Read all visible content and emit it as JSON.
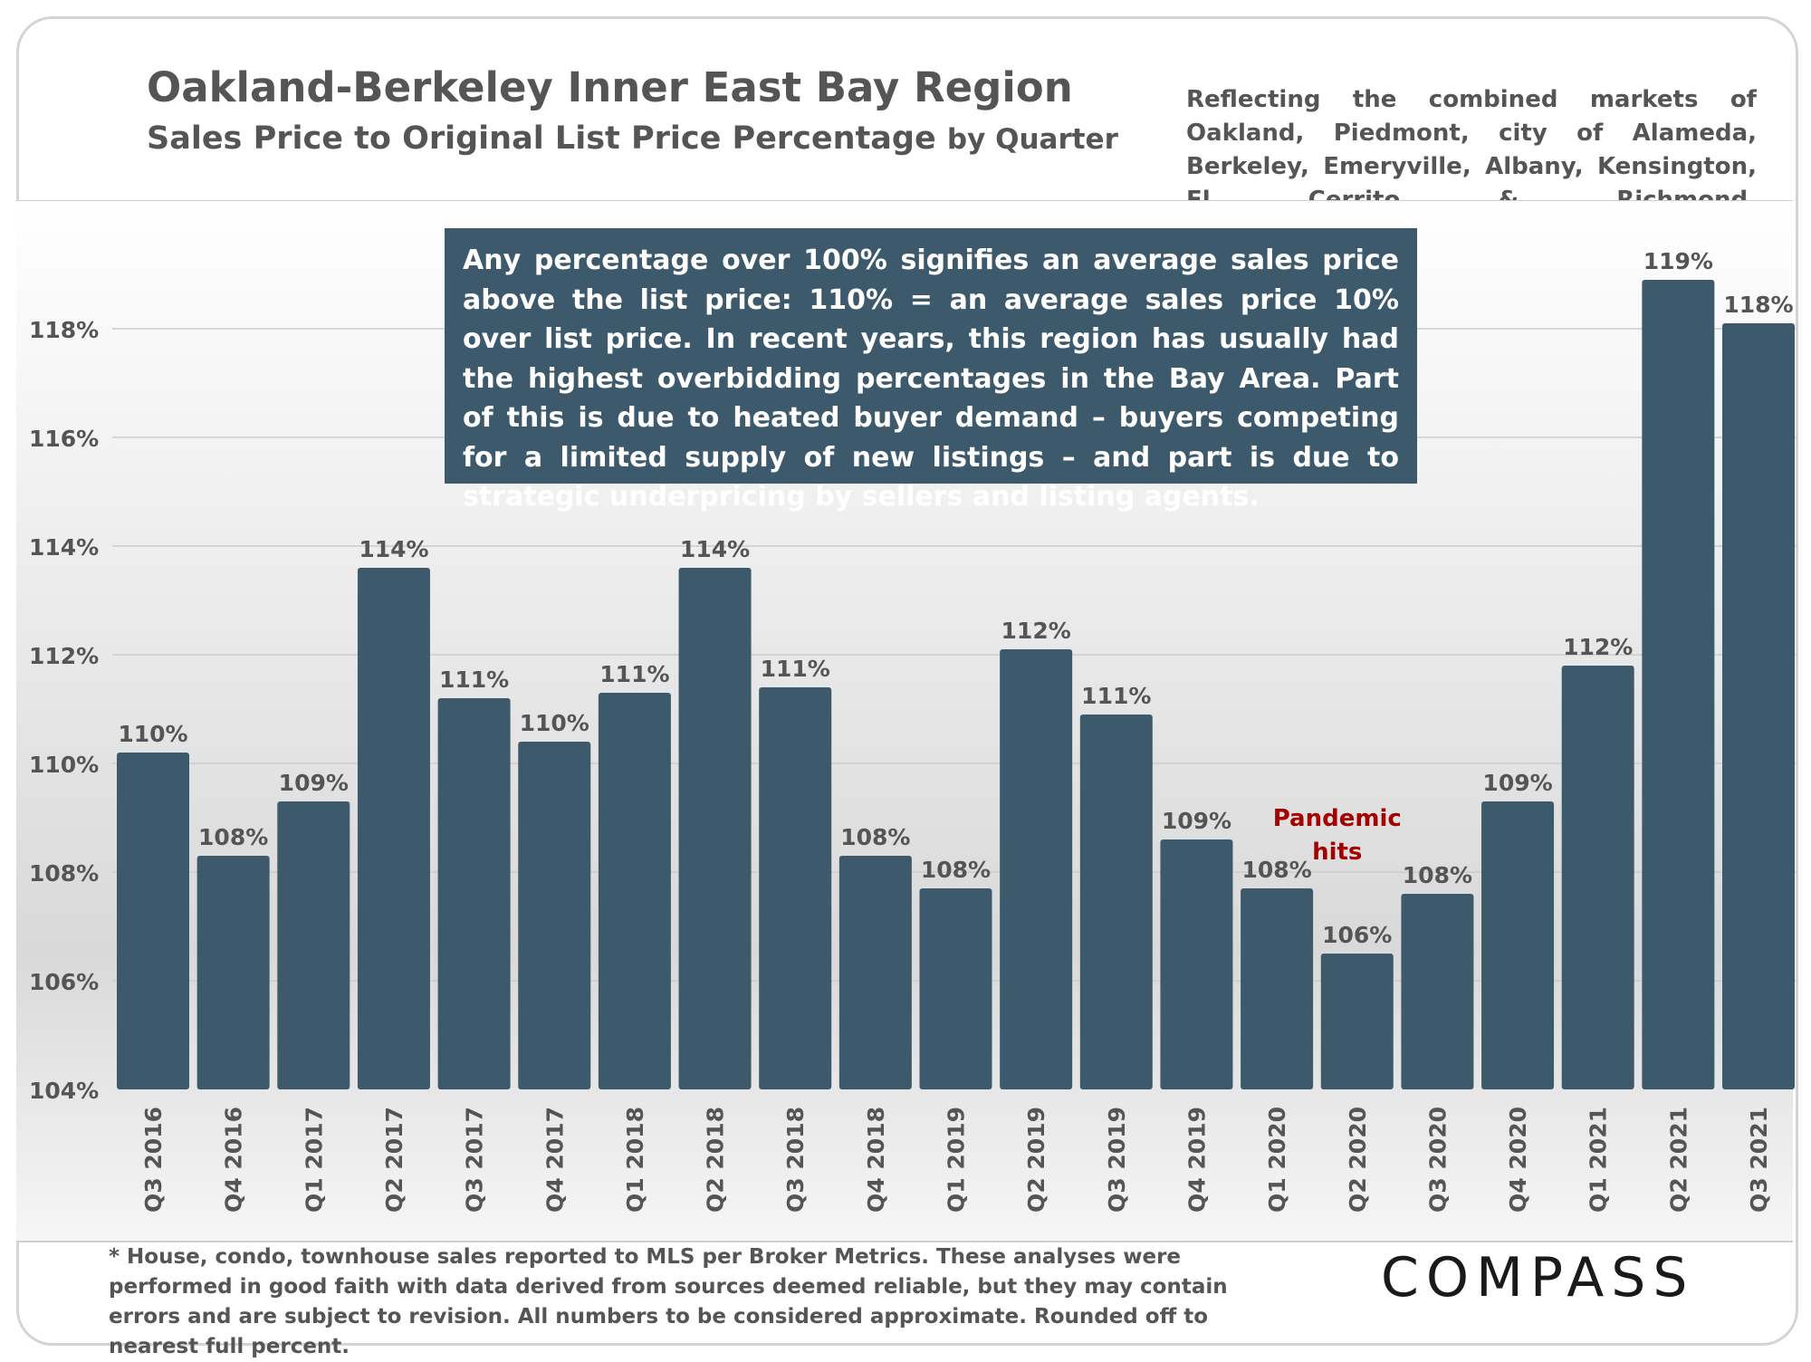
{
  "header": {
    "title": "Oakland-Berkeley Inner East Bay Region",
    "subtitle_main": "Sales Price to Original List Price Percentage",
    "subtitle_suffix": "by Quarter",
    "region_note": "Reflecting the combined markets of Oakland, Piedmont, city of Alameda, Berkeley, Emeryville, Albany, Kensington, El Cerrito & Richmond."
  },
  "callout": {
    "text": "Any percentage over 100% signifies an average sales price above the list price: 110% = an average sales price 10% over list price. In recent years, this region has usually had the highest overbidding percentages in the Bay Area. Part of this is due to heated buyer demand – buyers competing for a limited supply of new listings – and part is due to strategic underpricing by sellers and listing agents."
  },
  "annotation": {
    "line1": "Pandemic",
    "line2": "hits",
    "color": "#a30000"
  },
  "footer": {
    "note": "* House, condo, townhouse sales reported to MLS per Broker Metrics. These analyses were performed in good faith with data derived from sources deemed reliable, but they may contain errors and are subject to revision. All numbers to  be considered  approximate. Rounded off to nearest full percent.",
    "logo": "COMPASS"
  },
  "colors": {
    "bar": "#3d5a6c",
    "text": "#555555",
    "grid": "#cccccc"
  },
  "chart_data": {
    "type": "bar",
    "categories": [
      "Q3 2016",
      "Q4 2016",
      "Q1 2017",
      "Q2 2017",
      "Q3 2017",
      "Q4 2017",
      "Q1 2018",
      "Q2 2018",
      "Q3 2018",
      "Q4 2018",
      "Q1 2019",
      "Q2 2019",
      "Q3 2019",
      "Q4 2019",
      "Q1 2020",
      "Q2 2020",
      "Q3 2020",
      "Q4 2020",
      "Q1 2021",
      "Q2 2021",
      "Q3 2021"
    ],
    "values": [
      110.2,
      108.3,
      109.3,
      113.6,
      111.2,
      110.4,
      111.3,
      113.6,
      111.4,
      108.3,
      107.7,
      112.1,
      110.9,
      108.6,
      107.7,
      106.5,
      107.6,
      109.3,
      111.8,
      118.9,
      118.1
    ],
    "data_labels": [
      "110%",
      "108%",
      "109%",
      "114%",
      "111%",
      "110%",
      "111%",
      "114%",
      "111%",
      "108%",
      "108%",
      "112%",
      "111%",
      "109%",
      "108%",
      "106%",
      "108%",
      "109%",
      "112%",
      "119%",
      "118%"
    ],
    "y_ticks": [
      "104%",
      "106%",
      "108%",
      "110%",
      "112%",
      "114%",
      "116%",
      "118%"
    ],
    "ylim": [
      104,
      120
    ],
    "grid": true,
    "annotation_at": "Q2 2020"
  }
}
